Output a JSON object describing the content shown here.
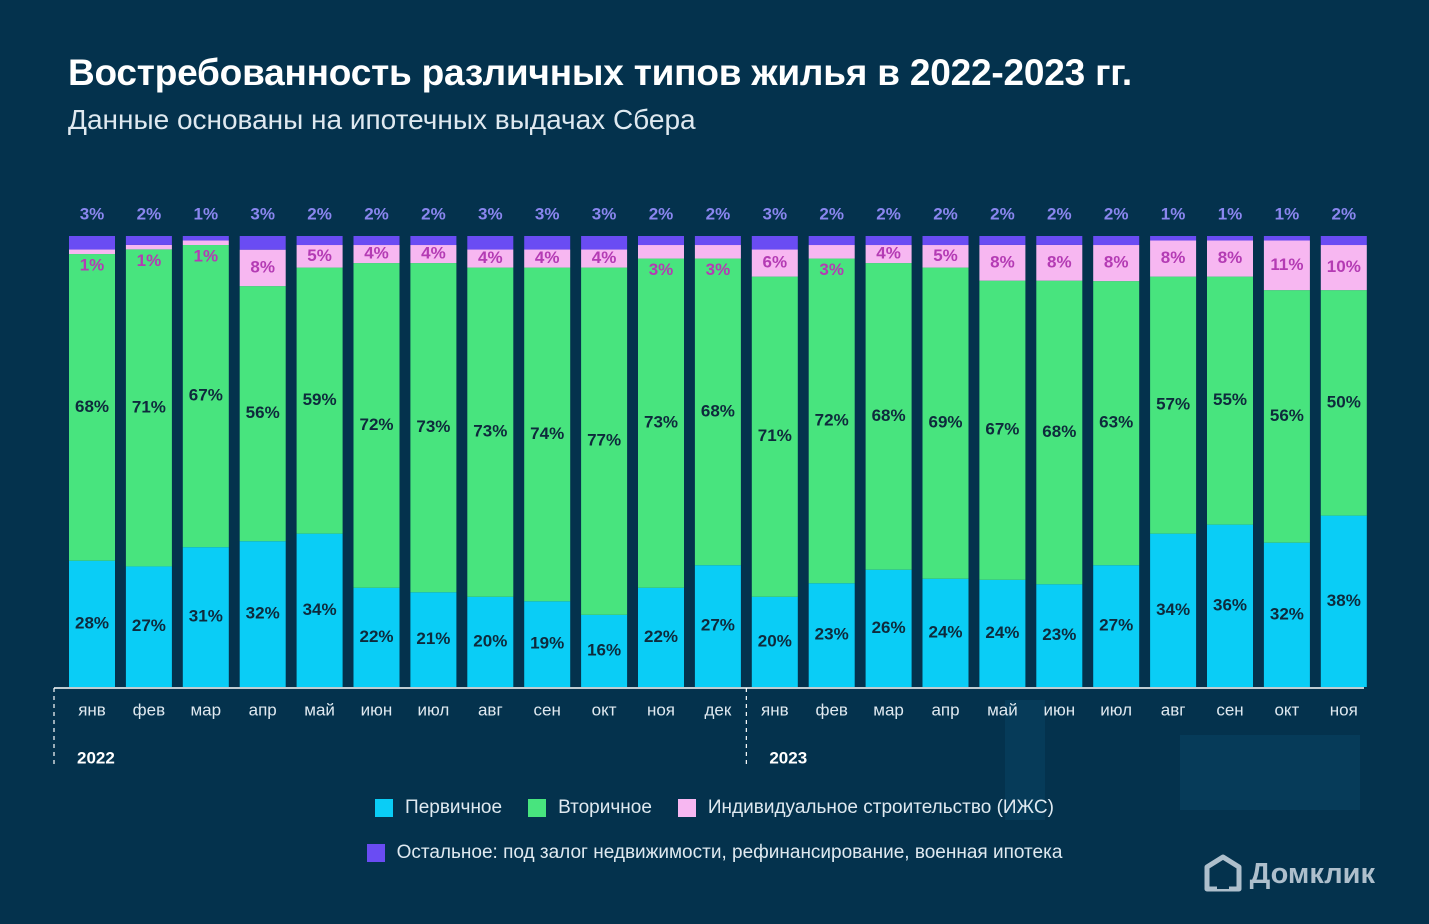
{
  "title": "Востребованность различных типов жилья в 2022-2023 гг.",
  "subtitle": "Данные основаны на ипотечных выдачах Сбера",
  "colors": {
    "background": "#04324d",
    "primary": "#0acdf6",
    "secondary": "#48e47e",
    "izhs": "#f7b7f1",
    "other": "#6a4cf3",
    "label_dark": "#0e2a3c",
    "label_izhs": "#b43bb4",
    "label_top": "#8a86ef"
  },
  "legend": {
    "primary": "Первичное",
    "secondary": "Вторичное",
    "izhs": "Индивидуальное строительство (ИЖС)",
    "other": "Остальное: под залог недвижимости, рефинансирование, военная ипотека"
  },
  "logo": {
    "text": "Домклик",
    "icon": "house-logo-icon"
  },
  "chart_data": {
    "type": "bar",
    "stacked": true,
    "normalized": true,
    "categories": [
      "янв",
      "фев",
      "мар",
      "апр",
      "май",
      "июн",
      "июл",
      "авг",
      "сен",
      "окт",
      "ноя",
      "дек",
      "янв",
      "фев",
      "мар",
      "апр",
      "май",
      "июн",
      "июл",
      "авг",
      "сен",
      "окт",
      "ноя"
    ],
    "years": [
      {
        "label": "2022",
        "start": 0,
        "count": 12
      },
      {
        "label": "2023",
        "start": 12,
        "count": 11
      }
    ],
    "series": [
      {
        "name": "Первичное",
        "key": "primary",
        "values": [
          28,
          27,
          31,
          32,
          34,
          22,
          21,
          20,
          19,
          16,
          22,
          27,
          20,
          23,
          26,
          24,
          24,
          23,
          27,
          34,
          36,
          32,
          38
        ]
      },
      {
        "name": "Вторичное",
        "key": "secondary",
        "values": [
          68,
          71,
          67,
          56,
          59,
          72,
          73,
          73,
          74,
          77,
          73,
          68,
          71,
          72,
          68,
          69,
          67,
          68,
          63,
          57,
          55,
          56,
          50
        ]
      },
      {
        "name": "Индивидуальное строительство (ИЖС)",
        "key": "izhs",
        "values": [
          1,
          1,
          1,
          8,
          5,
          4,
          4,
          4,
          4,
          4,
          3,
          3,
          6,
          3,
          4,
          5,
          8,
          8,
          8,
          8,
          8,
          11,
          10
        ]
      },
      {
        "name": "Остальное: под залог недвижимости, рефинансирование, военная ипотека",
        "key": "other",
        "values": [
          3,
          2,
          1,
          3,
          2,
          2,
          2,
          3,
          3,
          3,
          2,
          2,
          3,
          2,
          2,
          2,
          2,
          2,
          2,
          1,
          1,
          1,
          2
        ]
      }
    ],
    "unit": "%",
    "ylim": [
      0,
      100
    ],
    "legend_position": "bottom"
  }
}
